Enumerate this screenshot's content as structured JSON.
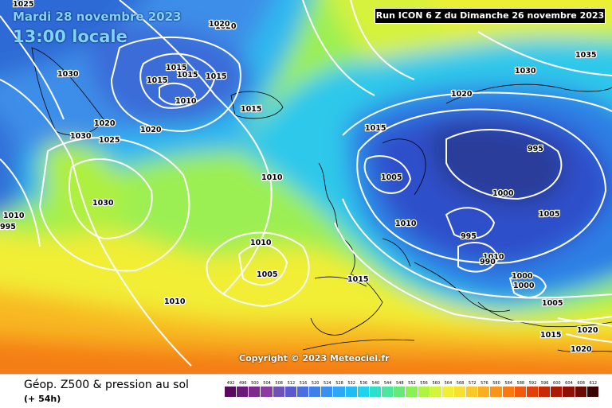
{
  "header": {
    "date": "Mardi 28 novembre 2023",
    "time": "13:00 locale",
    "run": "Run ICON 6 Z du Dimanche 26 novembre 2023"
  },
  "copyright": "Copyright © 2023 Meteociel.fr",
  "footer": {
    "product": "Géop. Z500 & pression au sol",
    "lead": "(+ 54h)"
  },
  "scale": {
    "labels": [
      "492",
      "496",
      "500",
      "504",
      "508",
      "512",
      "516",
      "520",
      "524",
      "528",
      "532",
      "536",
      "540",
      "544",
      "548",
      "552",
      "556",
      "560",
      "564",
      "568",
      "572",
      "576",
      "580",
      "584",
      "588",
      "592",
      "596",
      "600",
      "604",
      "608",
      "612"
    ],
    "colors": [
      "#5a0a5e",
      "#6a1a78",
      "#7d2a8c",
      "#8c3ca0",
      "#6d52b8",
      "#5a5acc",
      "#4a6ee0",
      "#3f7fe8",
      "#3a90f0",
      "#2ea7f5",
      "#22bcf5",
      "#1ed4ec",
      "#2fe0c8",
      "#4ce6a0",
      "#68e878",
      "#8af056",
      "#aef440",
      "#d4f43a",
      "#f0ef36",
      "#f8e030",
      "#f8c828",
      "#f8b020",
      "#f89418",
      "#f87812",
      "#f05a0e",
      "#e0400a",
      "#c82a08",
      "#ac1a06",
      "#8c1004",
      "#6a0a02",
      "#3c0000"
    ]
  },
  "isobar_labels": [
    {
      "text": "1025"
    },
    {
      "text": "1020"
    },
    {
      "text": "1030"
    },
    {
      "text": "1015"
    },
    {
      "text": "1015"
    },
    {
      "text": "1015"
    },
    {
      "text": "1015"
    },
    {
      "text": "1010"
    },
    {
      "text": "1015"
    },
    {
      "text": "1020"
    },
    {
      "text": "1020"
    },
    {
      "text": "1030"
    },
    {
      "text": "1025"
    },
    {
      "text": "1030"
    },
    {
      "text": "1010"
    },
    {
      "text": "1010"
    },
    {
      "text": "1005"
    },
    {
      "text": "1010"
    },
    {
      "text": "995"
    },
    {
      "text": "1000"
    },
    {
      "text": "1010"
    },
    {
      "text": "1010"
    },
    {
      "text": "1015"
    },
    {
      "text": "1015"
    },
    {
      "text": "1005"
    },
    {
      "text": "995"
    },
    {
      "text": "1000"
    },
    {
      "text": "1005"
    },
    {
      "text": "1010"
    },
    {
      "text": "995"
    },
    {
      "text": "990"
    },
    {
      "text": "1000"
    },
    {
      "text": "1005"
    },
    {
      "text": "1015"
    },
    {
      "text": "1020"
    },
    {
      "text": "1020"
    },
    {
      "text": "1020"
    },
    {
      "text": "1035"
    },
    {
      "text": "1030"
    },
    {
      "text": "1020"
    }
  ]
}
